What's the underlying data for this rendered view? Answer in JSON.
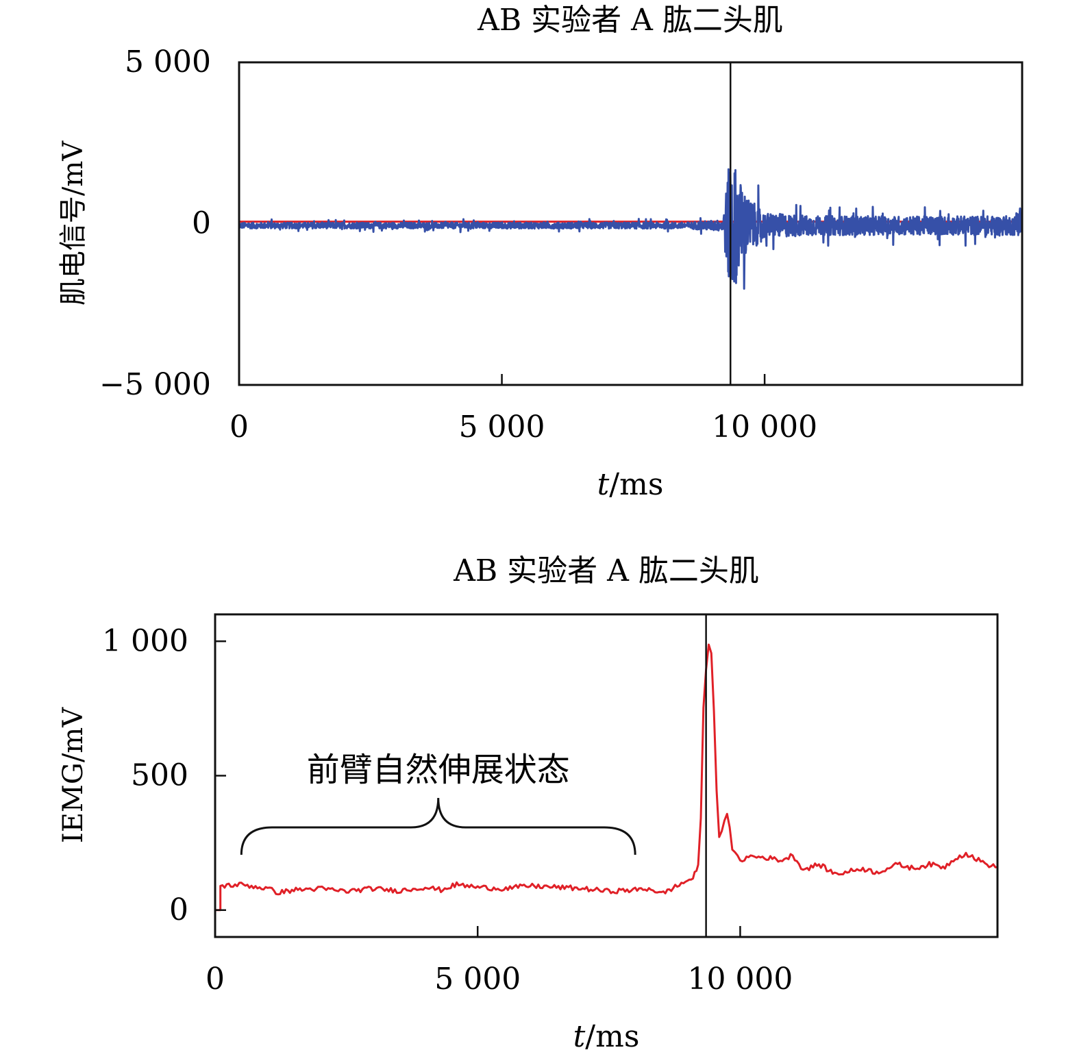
{
  "chart_data": [
    {
      "type": "line",
      "title": "AB 实验者 A 肱二头肌",
      "xlabel_italic": "t",
      "xlabel_unit": "/ms",
      "ylabel": "肌电信号/mV",
      "xlim": [
        0,
        14900
      ],
      "ylim": [
        -5000,
        5000
      ],
      "x_ticks": [
        0,
        5000,
        10000
      ],
      "x_tick_labels": [
        "0",
        "5 000",
        "10 000"
      ],
      "y_ticks": [
        5000,
        0,
        -5000
      ],
      "y_tick_labels": [
        "5 000",
        "0",
        "−5 000"
      ],
      "vline_x": 9350,
      "grid": false,
      "legend": "none",
      "colors": {
        "signal": "#3650a8",
        "envelope": "#e02027",
        "axis": "#111111"
      },
      "series": [
        {
          "color": "#3650a8",
          "kind": "noise",
          "description_points_x": [
            0,
            8500,
            9200,
            9350,
            9400,
            9500,
            9700,
            10000,
            11000,
            13000,
            14900
          ],
          "amplitude": [
            150,
            160,
            300,
            3800,
            3600,
            2500,
            1400,
            650,
            500,
            480,
            500
          ]
        },
        {
          "color": "#e02027",
          "x": [
            0,
            14900
          ],
          "y": [
            60,
            60
          ]
        }
      ]
    },
    {
      "type": "line",
      "title": "AB 实验者 A 肱二头肌",
      "xlabel_italic": "t",
      "xlabel_unit": "/ms",
      "ylabel": "IEMG/mV",
      "xlim": [
        0,
        14900
      ],
      "ylim": [
        -100,
        1100
      ],
      "x_ticks": [
        0,
        5000,
        10000
      ],
      "x_tick_labels": [
        "0",
        "5 000",
        "10 000"
      ],
      "y_ticks": [
        1000,
        500,
        0
      ],
      "y_tick_labels": [
        "1 000",
        "500",
        "0"
      ],
      "vline_x": 9350,
      "grid": false,
      "legend": "none",
      "annotation": {
        "text": "前臂自然伸展状态",
        "x_start": 500,
        "x_end": 8000,
        "y": 310
      },
      "series": [
        {
          "color": "#e02027",
          "x": [
            0,
            100,
            101,
            500,
            1000,
            1200,
            1500,
            2000,
            2500,
            3000,
            3500,
            4000,
            4300,
            4600,
            5000,
            5500,
            6000,
            6500,
            7000,
            7500,
            8000,
            8300,
            8500,
            8800,
            9000,
            9100,
            9200,
            9250,
            9300,
            9350,
            9400,
            9450,
            9500,
            9550,
            9600,
            9650,
            9700,
            9750,
            9800,
            9850,
            9900,
            9950,
            10000,
            10200,
            10500,
            10800,
            11000,
            11200,
            11500,
            11800,
            12000,
            12300,
            12600,
            13000,
            13300,
            13600,
            13900,
            14100,
            14300,
            14500,
            14700,
            14900
          ],
          "y": [
            0,
            0,
            90,
            95,
            80,
            65,
            75,
            80,
            70,
            80,
            72,
            85,
            75,
            95,
            85,
            80,
            90,
            85,
            80,
            70,
            75,
            80,
            60,
            90,
            110,
            120,
            160,
            350,
            750,
            900,
            980,
            950,
            750,
            450,
            270,
            300,
            340,
            350,
            300,
            230,
            210,
            195,
            185,
            200,
            195,
            185,
            205,
            150,
            170,
            135,
            140,
            155,
            140,
            170,
            155,
            170,
            160,
            195,
            210,
            190,
            170,
            160
          ]
        }
      ]
    }
  ]
}
